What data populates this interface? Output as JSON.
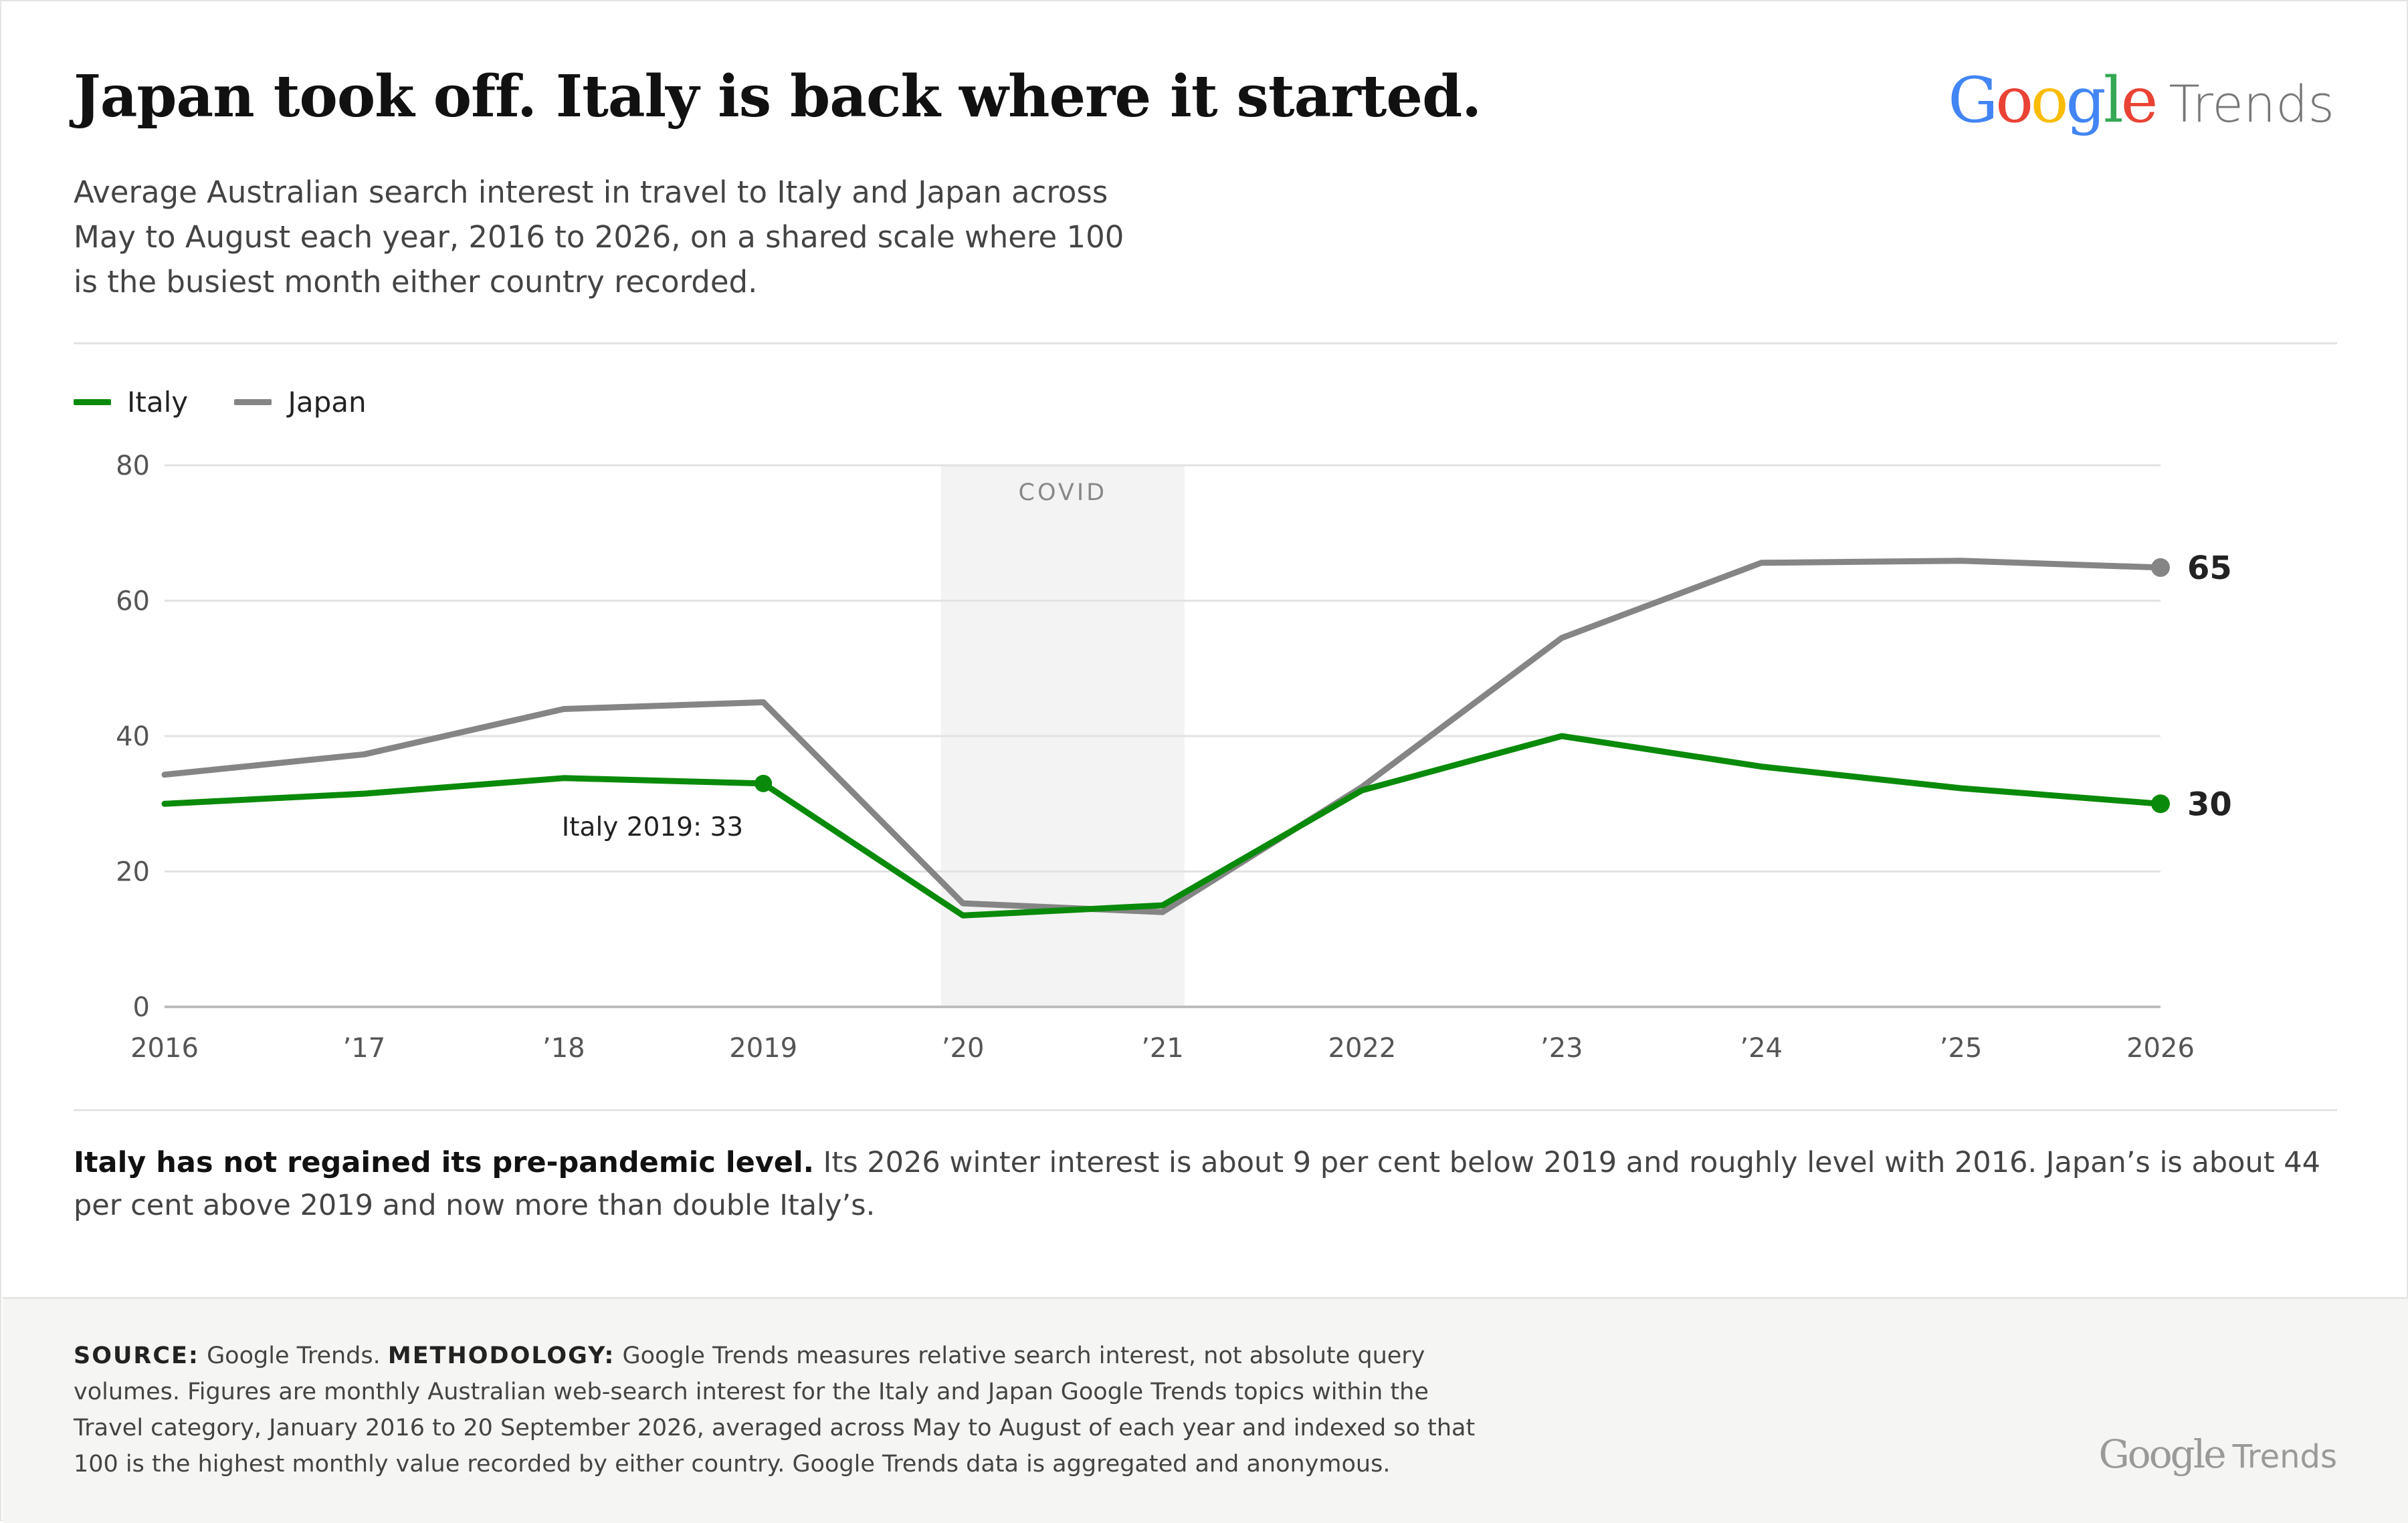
{
  "header": {
    "title": "Japan took off. Italy is back where it started.",
    "subtitle": "Average Australian search interest in travel to Italy and Japan across May to August each year, 2016 to 2026, on a shared scale where 100 is the busiest month either country recorded."
  },
  "brand": {
    "word1": "Google",
    "word2": "Trends"
  },
  "takeaway": {
    "lead": "Italy has not regained its pre-pandemic level.",
    "body": " Its 2026 winter interest is about 9 per cent below 2019 and roughly level with 2016. Japan’s is about 44 per cent above 2019 and now more than double Italy’s."
  },
  "footer": {
    "source_label": "SOURCE:",
    "source_text": " Google Trends. ",
    "method_label": "METHODOLOGY:",
    "method_text": " Google Trends measures relative search interest, not absolute query volumes. Figures are monthly Australian web-search interest for the Italy and Japan Google Trends topics within the Travel category, January 2016 to 20 September 2026, averaged across May to August of each year and indexed so that 100 is the highest monthly value recorded by either country. Google Trends data is aggregated and anonymous."
  },
  "chart_data": {
    "type": "line",
    "x": [
      2016,
      2017,
      2018,
      2019,
      2020,
      2021,
      2022,
      2023,
      2024,
      2025,
      2026
    ],
    "tick_labels": [
      "2016",
      "’17",
      "’18",
      "2019",
      "’20",
      "’21",
      "2022",
      "’23",
      "’24",
      "’25",
      "2026"
    ],
    "ylim": [
      0,
      80
    ],
    "yticks": [
      0,
      20,
      40,
      60,
      80
    ],
    "grid": true,
    "legend": "top-left",
    "series": [
      {
        "name": "Italy",
        "color": "#0a8a0a",
        "values": [
          30,
          31.5,
          33.8,
          33,
          13.5,
          15,
          32,
          40,
          35.5,
          32.3,
          30
        ]
      },
      {
        "name": "Japan",
        "color": "#858585",
        "values": [
          34.3,
          37.3,
          44,
          45,
          15.3,
          14,
          32.5,
          54.5,
          65.6,
          65.9,
          64.9
        ]
      }
    ],
    "shaded_region": {
      "label": "COVID",
      "x_start": 2019.89,
      "x_end": 2021.11
    },
    "annotations": [
      {
        "text": "Italy 2019: 33",
        "series": "Italy",
        "x": 2019
      }
    ],
    "end_labels": [
      {
        "series": "Japan",
        "text": "65"
      },
      {
        "series": "Italy",
        "text": "30"
      }
    ]
  }
}
